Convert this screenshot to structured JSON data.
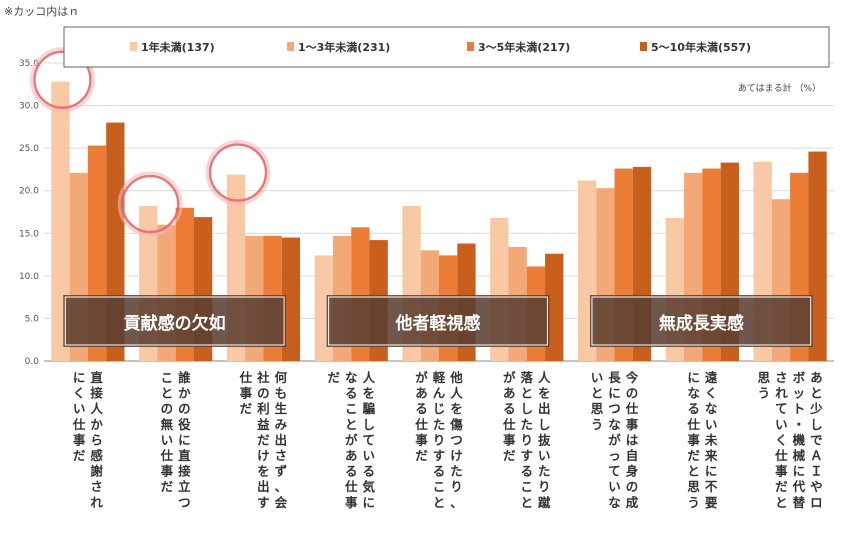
{
  "note": "※カッコ内はｎ",
  "chart_data": {
    "type": "bar",
    "unit_label": "あてはまる計 （%）",
    "ylim": [
      0,
      35
    ],
    "yticks": [
      "0.0",
      "5.0",
      "10.0",
      "15.0",
      "20.0",
      "25.0",
      "30.0",
      "35.0"
    ],
    "grid": true,
    "legend_position": "top",
    "series": [
      {
        "name": "1年未満(137)",
        "color": "#F8C9A4",
        "values": [
          32.8,
          18.2,
          21.9,
          12.4,
          18.2,
          16.8,
          21.2,
          16.8,
          23.4
        ]
      },
      {
        "name": "1～3年未満(231)",
        "color": "#F2A877",
        "values": [
          22.1,
          16.0,
          14.7,
          14.7,
          13.0,
          13.4,
          20.3,
          22.1,
          19.0
        ]
      },
      {
        "name": "3～5年未満(217)",
        "color": "#EA7C35",
        "values": [
          25.3,
          18.0,
          14.7,
          15.7,
          12.4,
          11.1,
          22.6,
          22.6,
          22.1
        ]
      },
      {
        "name": "5～10年未満(557)",
        "color": "#C95F1C",
        "values": [
          28.0,
          16.9,
          14.5,
          14.2,
          13.8,
          12.6,
          22.8,
          23.3,
          24.6
        ]
      }
    ],
    "categories": [
      [
        "直接人から感謝され",
        "にくい仕事だ"
      ],
      [
        "誰かの役に直接立つ",
        "ことの無い仕事だ"
      ],
      [
        "何も生み出さず、会",
        "社の利益だけを出す",
        "仕事だ"
      ],
      [
        "人を騙している気に",
        "なることがある仕事",
        "だ"
      ],
      [
        "他人を傷つけたり、",
        "軽んじたりすること",
        "がある仕事だ"
      ],
      [
        "人を出し抜いたり蹴",
        "落としたりすること",
        "がある仕事だ"
      ],
      [
        "今の仕事は自身の成",
        "長につながっていな",
        "いと思う"
      ],
      [
        "遠くない未来に不要",
        "になる仕事だと思う"
      ],
      [
        "あと少しでＡＩやロ",
        "ボット・機械に代替",
        "されていく仕事だと",
        "思う"
      ]
    ],
    "groups": [
      {
        "label": "貢献感の欠如",
        "from": 0,
        "to": 2
      },
      {
        "label": "他者軽視感",
        "from": 3,
        "to": 5
      },
      {
        "label": "無成長実感",
        "from": 6,
        "to": 8
      }
    ],
    "highlighted": [
      {
        "category": 0,
        "series": 0
      },
      {
        "category": 1,
        "series": 0
      },
      {
        "category": 2,
        "series": 0
      }
    ]
  }
}
